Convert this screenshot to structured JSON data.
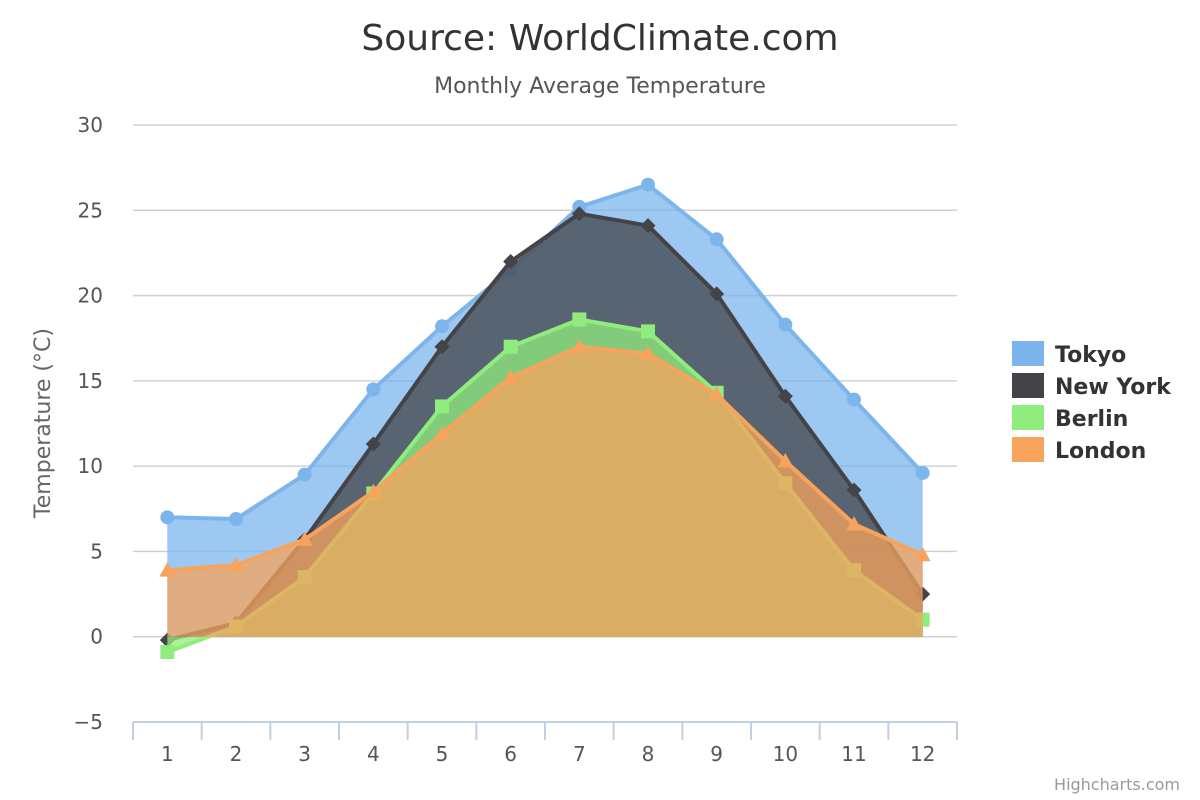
{
  "chart_data": {
    "type": "area",
    "title": "Source: WorldClimate.com",
    "subtitle": "Monthly Average Temperature",
    "xlabel": "",
    "ylabel": "Temperature (°C)",
    "categories": [
      "1",
      "2",
      "3",
      "4",
      "5",
      "6",
      "7",
      "8",
      "9",
      "10",
      "11",
      "12"
    ],
    "ylim": [
      -5,
      30
    ],
    "yticks": [
      -5,
      0,
      5,
      10,
      15,
      20,
      25,
      30
    ],
    "ytick_labels": [
      "−5",
      "0",
      "5",
      "10",
      "15",
      "20",
      "25",
      "30"
    ],
    "grid": true,
    "legend_position": "right",
    "series": [
      {
        "name": "Tokyo",
        "color": "#7cb5ec",
        "marker": "circle",
        "values": [
          7.0,
          6.9,
          9.5,
          14.5,
          18.2,
          21.5,
          25.2,
          26.5,
          23.3,
          18.3,
          13.9,
          9.6
        ]
      },
      {
        "name": "New York",
        "color": "#434348",
        "marker": "diamond",
        "values": [
          -0.2,
          0.8,
          5.7,
          11.3,
          17.0,
          22.0,
          24.8,
          24.1,
          20.1,
          14.1,
          8.6,
          2.5
        ]
      },
      {
        "name": "Berlin",
        "color": "#90ed7d",
        "marker": "square",
        "values": [
          -0.9,
          0.6,
          3.5,
          8.4,
          13.5,
          17.0,
          18.6,
          17.9,
          14.3,
          9.0,
          3.9,
          1.0
        ]
      },
      {
        "name": "London",
        "color": "#f7a35c",
        "marker": "triangle",
        "values": [
          3.9,
          4.2,
          5.7,
          8.5,
          11.9,
          15.2,
          17.0,
          16.6,
          14.2,
          10.3,
          6.6,
          4.8
        ]
      }
    ]
  },
  "credits": "Highcharts.com"
}
